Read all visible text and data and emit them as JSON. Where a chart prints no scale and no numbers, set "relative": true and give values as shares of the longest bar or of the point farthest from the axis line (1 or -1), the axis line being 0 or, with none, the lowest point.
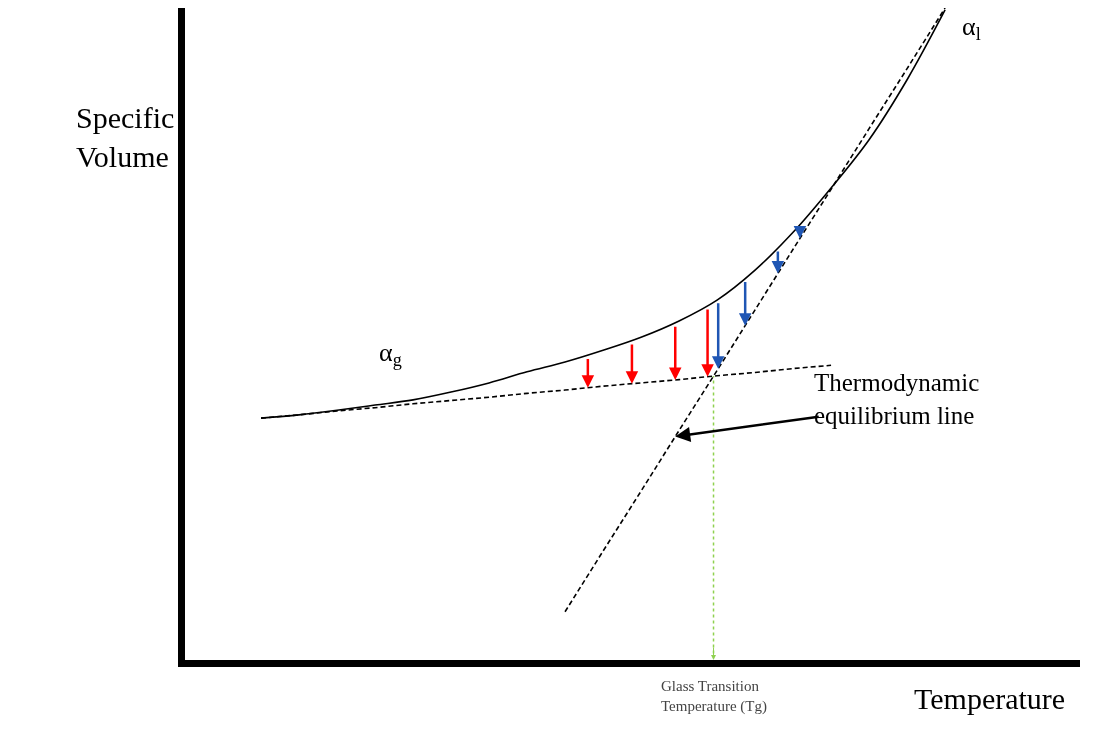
{
  "chart_data": {
    "type": "line",
    "relative": true,
    "xlabel": "Temperature",
    "ylabel": "Specific\nVolume",
    "categories": [
      null,
      null,
      null,
      null,
      null,
      null,
      null,
      null,
      null,
      null,
      null,
      null,
      null,
      null,
      null,
      null,
      null,
      null,
      null,
      null,
      null,
      null,
      null,
      null
    ],
    "series": [
      {
        "color": "#000000",
        "line_style": "solid",
        "values": [
          null,
          null,
          0.371,
          0.376,
          0.383,
          0.391,
          0.399,
          0.411,
          0.425,
          0.442,
          0.457,
          0.475,
          0.495,
          0.52,
          0.552,
          0.598,
          0.656,
          0.724,
          0.798,
          0.89,
          0.997,
          null,
          null,
          null
        ]
      },
      {
        "color": "#000000",
        "line_style": "dashed",
        "values": [
          null,
          null,
          0.371,
          0.376,
          0.382,
          0.387,
          0.393,
          0.398,
          0.403,
          0.409,
          0.414,
          0.42,
          0.425,
          0.43,
          0.436,
          0.441,
          0.447,
          0.452,
          null,
          null,
          null,
          null,
          null,
          null
        ]
      },
      {
        "color": "#000000",
        "line_style": "dashed",
        "values": [
          null,
          null,
          null,
          null,
          null,
          null,
          null,
          null,
          null,
          null,
          0.074,
          0.167,
          0.259,
          0.352,
          0.444,
          0.537,
          0.63,
          0.722,
          0.815,
          0.907,
          1.0,
          null,
          null,
          null
        ]
      }
    ],
    "annotations": [
      "Thermodynamic\nequilibrium line",
      "α$_{g}$",
      "α$_{l}$",
      "Glass Transition\nTemperature (Tg)"
    ],
    "legend": false,
    "marker": "none"
  }
}
